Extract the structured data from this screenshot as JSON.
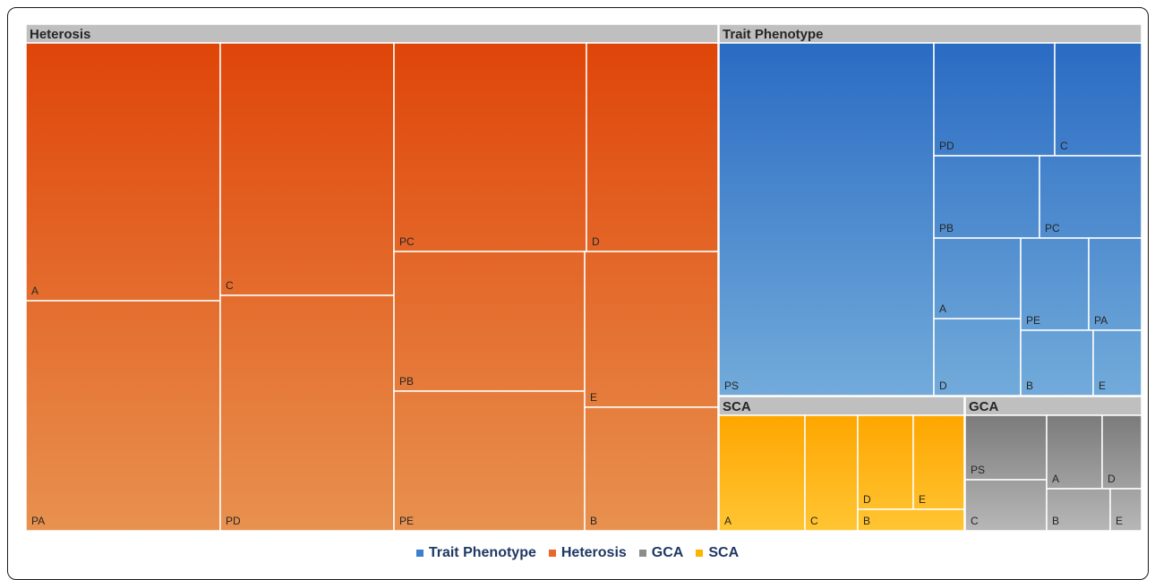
{
  "chart_data": {
    "type": "treemap",
    "title": "",
    "groups": [
      {
        "name": "Heterosis",
        "colors": [
          "#df4509",
          "#e8914f"
        ],
        "tiles": [
          {
            "label": "A"
          },
          {
            "label": "PA"
          },
          {
            "label": "C"
          },
          {
            "label": "PD"
          },
          {
            "label": "PC"
          },
          {
            "label": "D"
          },
          {
            "label": "PB"
          },
          {
            "label": "PE"
          },
          {
            "label": "E"
          },
          {
            "label": "B"
          }
        ]
      },
      {
        "name": "Trait Phenotype",
        "colors": [
          "#2a6bc3",
          "#72abda"
        ],
        "tiles": [
          {
            "label": "PS"
          },
          {
            "label": "PD"
          },
          {
            "label": "C"
          },
          {
            "label": "PB"
          },
          {
            "label": "PC"
          },
          {
            "label": "A"
          },
          {
            "label": "D"
          },
          {
            "label": "PE"
          },
          {
            "label": "PA"
          },
          {
            "label": "B"
          },
          {
            "label": "E"
          }
        ]
      },
      {
        "name": "SCA",
        "colors": [
          "#fea600",
          "#ffc533"
        ],
        "tiles": [
          {
            "label": "A"
          },
          {
            "label": "C"
          },
          {
            "label": "D"
          },
          {
            "label": "E"
          },
          {
            "label": "B"
          }
        ]
      },
      {
        "name": "GCA",
        "colors": [
          "#7b7b7b",
          "#b7b7b7"
        ],
        "tiles": [
          {
            "label": "PS"
          },
          {
            "label": "C"
          },
          {
            "label": "A"
          },
          {
            "label": "D"
          },
          {
            "label": "B"
          },
          {
            "label": "E"
          }
        ]
      }
    ],
    "legend": {
      "position": "bottom",
      "entries": [
        {
          "name": "Trait Phenotype",
          "color": "#3b80cc"
        },
        {
          "name": "Heterosis",
          "color": "#e8672a"
        },
        {
          "name": "GCA",
          "color": "#8c8c8c"
        },
        {
          "name": "SCA",
          "color": "#fbb400"
        }
      ]
    }
  }
}
